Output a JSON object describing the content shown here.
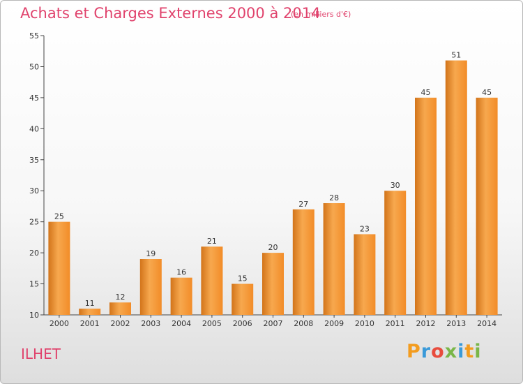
{
  "header": {
    "title": "Achats et Charges Externes 2000 à 2014",
    "subtitle": "(en milliers d'€)"
  },
  "footer": {
    "commune": "ILHET",
    "logo_letters": [
      "P",
      "r",
      "o",
      "x",
      "i",
      "t",
      "i"
    ],
    "logo_colors": [
      "#f39c1f",
      "#3a9ad9",
      "#e84c3d",
      "#7ab648",
      "#3a9ad9",
      "#f39c1f",
      "#7ab648"
    ]
  },
  "chart_data": {
    "type": "bar",
    "title": "Achats et Charges Externes 2000 à 2014",
    "subtitle": "(en milliers d'€)",
    "xlabel": "",
    "ylabel": "",
    "categories": [
      "2000",
      "2001",
      "2002",
      "2003",
      "2004",
      "2005",
      "2006",
      "2007",
      "2008",
      "2009",
      "2010",
      "2011",
      "2012",
      "2013",
      "2014"
    ],
    "values": [
      25,
      11,
      12,
      19,
      16,
      21,
      15,
      20,
      27,
      28,
      23,
      30,
      45,
      51,
      45
    ],
    "ylim": [
      10,
      55
    ],
    "yticks": [
      10,
      15,
      20,
      25,
      30,
      35,
      40,
      45,
      50,
      55
    ],
    "grid": false,
    "legend": "none",
    "bar_color": "#f28c28",
    "bar_color_light": "#f7a84e",
    "bar_color_dark": "#d2741a"
  }
}
